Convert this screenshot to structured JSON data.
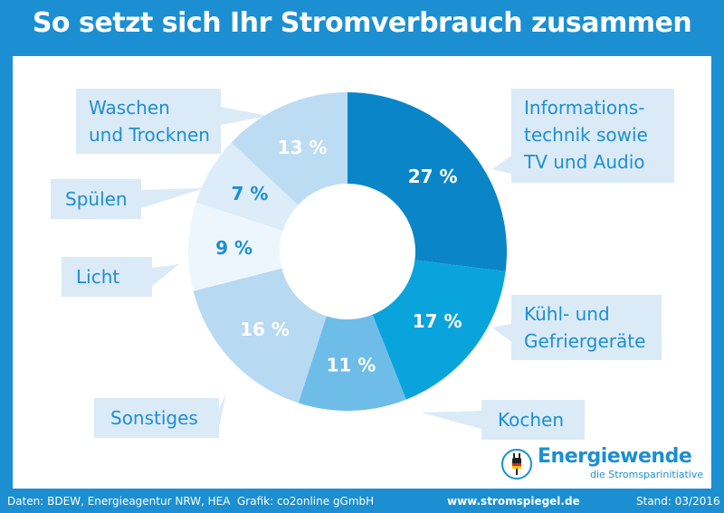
{
  "title": "So setzt sich Ihr Stromverbrauch zusammen",
  "chart_data": {
    "type": "pie",
    "title": "So setzt sich Ihr Stromverbrauch zusammen",
    "unit": "%",
    "slices": [
      {
        "label": "Informationstechnik sowie TV und Audio",
        "value": 27,
        "display": "27 %",
        "color": "#0a86c8",
        "text_color": "#ffffff"
      },
      {
        "label": "Kühl- und Gefriergeräte",
        "value": 17,
        "display": "17 %",
        "color": "#0aa4dd",
        "text_color": "#ffffff"
      },
      {
        "label": "Kochen",
        "value": 11,
        "display": "11 %",
        "color": "#6ebde9",
        "text_color": "#ffffff"
      },
      {
        "label": "Sonstiges",
        "value": 16,
        "display": "16 %",
        "color": "#b7d9f1",
        "text_color": "#ffffff"
      },
      {
        "label": "Licht",
        "value": 9,
        "display": "9 %",
        "color": "#eef6fd",
        "text_color": "#1b8fd2"
      },
      {
        "label": "Spülen",
        "value": 7,
        "display": "7 %",
        "color": "#dcecf9",
        "text_color": "#1b8fd2"
      },
      {
        "label": "Waschen und Trocknen",
        "value": 13,
        "display": "13 %",
        "color": "#bcdcf3",
        "text_color": "#ffffff"
      }
    ]
  },
  "labels": {
    "info": [
      "Informations-",
      "technik sowie",
      "TV und Audio"
    ],
    "kuehl": [
      "Kühl- und",
      "Gefriergeräte"
    ],
    "kochen": [
      "Kochen"
    ],
    "sonstiges": [
      "Sonstiges"
    ],
    "licht": [
      "Licht"
    ],
    "spuelen": [
      "Spülen"
    ],
    "waschen": [
      "Waschen",
      "und Trocknen"
    ]
  },
  "logo": {
    "title": "Energiewende",
    "subtitle": "die Stromsparinitiative"
  },
  "footer": {
    "source": "Daten: BDEW, Energieagentur NRW, HEA",
    "graphic": "Grafik: co2online gGmbH",
    "url": "www.stromspiegel.de",
    "date": "Stand: 03/2016"
  },
  "colors": {
    "brand": "#1b8fd2",
    "label_bg": "#dbeaf7"
  }
}
